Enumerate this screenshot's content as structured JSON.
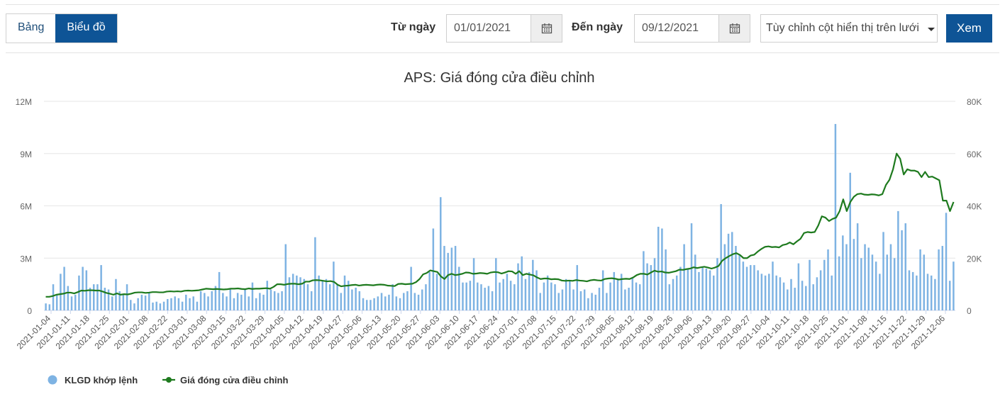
{
  "toolbar": {
    "tab_table": "Bảng",
    "tab_chart": "Biểu đồ",
    "from_label": "Từ ngày",
    "from_value": "01/01/2021",
    "to_label": "Đến ngày",
    "to_value": "09/12/2021",
    "column_select": "Tùy chỉnh cột hiển thị trên lưới",
    "view_button": "Xem"
  },
  "colors": {
    "accent": "#0e5496",
    "volume": "#7eb3e3",
    "price": "#1e7a1e"
  },
  "chart_data": {
    "type": "bar+line",
    "title": "APS: Giá đóng cửa điều chỉnh",
    "x_tick_labels": [
      "2021-01-04",
      "2021-01-11",
      "2021-01-18",
      "2021-01-25",
      "2021-02-01",
      "2021-02-08",
      "2021-02-22",
      "2021-03-01",
      "2021-03-08",
      "2021-03-15",
      "2021-03-22",
      "2021-03-29",
      "2021-04-05",
      "2021-04-12",
      "2021-04-19",
      "2021-04-27",
      "2021-05-06",
      "2021-05-13",
      "2021-05-20",
      "2021-05-27",
      "2021-06-03",
      "2021-06-10",
      "2021-06-17",
      "2021-06-24",
      "2021-07-01",
      "2021-07-08",
      "2021-07-15",
      "2021-07-22",
      "2021-07-29",
      "2021-08-05",
      "2021-08-12",
      "2021-08-19",
      "2021-08-26",
      "2021-09-06",
      "2021-09-13",
      "2021-09-20",
      "2021-09-27",
      "2021-10-04",
      "2021-10-11",
      "2021-10-18",
      "2021-10-25",
      "2021-11-01",
      "2021-11-08",
      "2021-11-15",
      "2021-11-22",
      "2021-11-29",
      "2021-12-06"
    ],
    "y_left": {
      "ylim": [
        0,
        12000000
      ],
      "ticks": [
        0,
        3000000,
        6000000,
        9000000,
        12000000
      ],
      "tick_labels": [
        "0",
        "3M",
        "6M",
        "9M",
        "12M"
      ]
    },
    "y_right": {
      "ylim": [
        0,
        80000
      ],
      "ticks": [
        0,
        20000,
        40000,
        60000,
        80000
      ],
      "tick_labels": [
        "0",
        "20K",
        "40K",
        "60K",
        "80K"
      ]
    },
    "grid": true,
    "legend_position": "bottom-left",
    "series": [
      {
        "name": "KLGD khớp lệnh",
        "type": "bar",
        "axis": "left",
        "values": [
          400000,
          350000,
          1500000,
          900000,
          2100000,
          2500000,
          1400000,
          800000,
          900000,
          2000000,
          2500000,
          2300000,
          1300000,
          1500000,
          1500000,
          2600000,
          1300000,
          1200000,
          800000,
          1800000,
          1100000,
          900000,
          1500000,
          600000,
          400000,
          700000,
          900000,
          850000,
          1000000,
          450000,
          500000,
          400000,
          500000,
          650000,
          700000,
          800000,
          700000,
          500000,
          900000,
          700000,
          800000,
          500000,
          1100000,
          1000000,
          800000,
          1100000,
          1400000,
          2200000,
          1000000,
          800000,
          1200000,
          700000,
          1000000,
          900000,
          1200000,
          800000,
          1600000,
          700000,
          1000000,
          900000,
          1700000,
          1200000,
          1100000,
          1000000,
          1100000,
          3800000,
          1900000,
          2100000,
          2000000,
          1900000,
          1800000,
          1500000,
          1100000,
          4200000,
          2000000,
          1700000,
          1800000,
          1500000,
          2800000,
          1500000,
          1000000,
          2000000,
          1700000,
          1200000,
          1300000,
          1100000,
          700000,
          600000,
          600000,
          700000,
          800000,
          1000000,
          800000,
          900000,
          1500000,
          800000,
          700000,
          1000000,
          1100000,
          2500000,
          1000000,
          900000,
          1200000,
          1500000,
          2200000,
          4700000,
          2100000,
          6500000,
          3700000,
          3300000,
          3600000,
          3700000,
          2500000,
          1600000,
          1600000,
          1700000,
          3000000,
          1600000,
          1500000,
          1300000,
          1400000,
          1100000,
          3000000,
          1600000,
          1800000,
          2100000,
          1700000,
          1500000,
          2700000,
          3100000,
          1800000,
          2200000,
          2900000,
          2300000,
          1000000,
          1600000,
          2000000,
          1600000,
          1500000,
          1000000,
          1200000,
          1800000,
          1700000,
          1200000,
          2600000,
          1100000,
          1200000,
          700000,
          1000000,
          900000,
          1300000,
          2300000,
          1000000,
          1600000,
          2200000,
          1800000,
          2100000,
          1200000,
          1300000,
          1900000,
          1600000,
          1500000,
          3400000,
          2700000,
          2600000,
          3000000,
          4800000,
          4700000,
          3500000,
          1500000,
          1800000,
          2000000,
          2500000,
          3800000,
          2400000,
          5000000,
          3200000,
          2200000,
          2500000,
          2400000,
          2300000,
          2000000,
          3000000,
          6100000,
          3800000,
          4400000,
          4500000,
          3700000,
          3200000,
          2800000,
          2500000,
          2600000,
          2600000,
          2300000,
          2100000,
          2000000,
          2100000,
          2800000,
          2000000,
          1900000,
          1600000,
          1200000,
          1800000,
          1300000,
          2700000,
          1700000,
          1400000,
          2900000,
          1500000,
          1900000,
          2300000,
          2900000,
          3500000,
          2000000,
          10700000,
          3100000,
          4300000,
          3800000,
          7900000,
          4100000,
          5000000,
          3000000,
          3800000,
          3600000,
          3200000,
          2800000,
          2100000,
          4500000,
          3200000,
          3800000,
          3000000,
          5700000,
          4600000,
          5000000,
          2300000,
          2200000,
          2000000,
          3500000,
          3200000,
          2100000,
          2000000,
          1800000,
          3500000,
          3700000,
          5600000,
          1700000,
          2800000
        ]
      },
      {
        "name": "Giá đóng cửa điều chỉnh",
        "type": "line",
        "axis": "right",
        "values": [
          5200,
          5200,
          5500,
          6000,
          6200,
          6400,
          6800,
          6800,
          6500,
          7000,
          7600,
          7500,
          7700,
          7700,
          7600,
          7600,
          7200,
          6700,
          6400,
          6000,
          6500,
          6000,
          6200,
          6100,
          6400,
          6800,
          6900,
          6900,
          6700,
          6800,
          7000,
          7000,
          6900,
          6900,
          7200,
          7300,
          7200,
          7300,
          7200,
          7500,
          7600,
          7500,
          7600,
          7700,
          8000,
          8300,
          8200,
          8100,
          8200,
          8100,
          8000,
          8100,
          8300,
          8300,
          8400,
          8200,
          8100,
          8400,
          8200,
          8300,
          8300,
          8400,
          8500,
          8300,
          9000,
          10000,
          10000,
          9800,
          10100,
          10200,
          10200,
          10000,
          10200,
          11000,
          11000,
          11500,
          11600,
          11500,
          11300,
          11100,
          11200,
          10900,
          9800,
          9200,
          9400,
          9500,
          9700,
          9800,
          9500,
          9700,
          9800,
          9700,
          9600,
          9800,
          9900,
          9800,
          9500,
          9400,
          9300,
          10100,
          10200,
          10000,
          10100,
          10200,
          10800,
          12000,
          13800,
          14300,
          15300,
          15000,
          14700,
          13000,
          12000,
          13500,
          14000,
          13500,
          13700,
          14000,
          14500,
          14400,
          14000,
          14100,
          14300,
          14200,
          14000,
          14500,
          14700,
          14600,
          14100,
          14500,
          15000,
          14900,
          14000,
          15000,
          13500,
          14000,
          13700,
          13400,
          12600,
          12000,
          12200,
          12200,
          11900,
          12000,
          11900,
          11400,
          11300,
          11400,
          11300,
          11600,
          11400,
          11300,
          11100,
          11500,
          11700,
          11500,
          11400,
          12000,
          12200,
          12300,
          12100,
          11800,
          12000,
          12100,
          12000,
          12600,
          13500,
          14000,
          14000,
          13700,
          14500,
          15200,
          14800,
          14900,
          14500,
          14400,
          14700,
          15000,
          15600,
          15500,
          15800,
          16000,
          16500,
          16200,
          16500,
          16700,
          16400,
          16000,
          16400,
          17000,
          19000,
          20000,
          20800,
          21500,
          21900,
          21200,
          20000,
          20000,
          21000,
          21300,
          22500,
          23500,
          24300,
          24500,
          24200,
          24300,
          24100,
          25000,
          25300,
          26000,
          25300,
          26400,
          27400,
          29600,
          30000,
          29800,
          30000,
          32500,
          36000,
          35500,
          34200,
          35000,
          35500,
          38000,
          42500,
          38000,
          41500,
          43500,
          44500,
          44700,
          44300,
          44200,
          44400,
          44300,
          44000,
          44500,
          48000,
          50000,
          54000,
          60000,
          58000,
          52000,
          54000,
          53500,
          53500,
          53000,
          51000,
          53000,
          51000,
          51200,
          50500,
          49800,
          42000,
          42000,
          38000,
          41500
        ]
      }
    ]
  }
}
